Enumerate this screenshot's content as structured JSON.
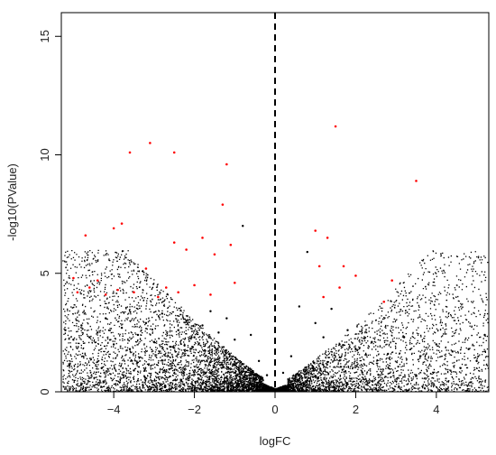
{
  "chart_data": {
    "type": "scatter",
    "title": "",
    "xlabel": "logFC",
    "ylabel": "-log10(PValue)",
    "xlim": [
      -5.3,
      5.3
    ],
    "ylim": [
      0,
      16
    ],
    "x_ticks": [
      -4,
      -2,
      0,
      2,
      4
    ],
    "y_ticks": [
      0,
      5,
      10,
      15
    ],
    "grid": false,
    "reference_line": {
      "x": 0,
      "style": "dashed",
      "color": "#000000"
    },
    "series": [
      {
        "color": "#000000",
        "points": [
          [
            -5.2,
            2.6
          ],
          [
            -5.0,
            2.2
          ],
          [
            -4.8,
            2.8
          ],
          [
            -4.6,
            2.3
          ],
          [
            -4.4,
            2.5
          ],
          [
            -4.2,
            3.1
          ],
          [
            -4.0,
            2.0
          ],
          [
            -3.8,
            2.7
          ],
          [
            -3.6,
            1.8
          ],
          [
            -3.4,
            2.4
          ],
          [
            -3.2,
            2.9
          ],
          [
            -3.0,
            2.1
          ],
          [
            -2.8,
            3.3
          ],
          [
            -2.6,
            1.9
          ],
          [
            -2.4,
            2.6
          ],
          [
            -2.2,
            3.0
          ],
          [
            -2.0,
            2.3
          ],
          [
            -1.8,
            2.8
          ],
          [
            -1.6,
            3.4
          ],
          [
            -1.4,
            2.5
          ],
          [
            -1.2,
            3.1
          ],
          [
            -1.0,
            2.2
          ],
          [
            -0.8,
            7.0
          ],
          [
            -0.6,
            2.4
          ],
          [
            -0.4,
            1.3
          ],
          [
            -0.2,
            0.7
          ],
          [
            0.2,
            0.8
          ],
          [
            0.4,
            1.5
          ],
          [
            0.6,
            3.6
          ],
          [
            0.8,
            5.9
          ],
          [
            1.0,
            2.9
          ],
          [
            1.2,
            2.3
          ],
          [
            1.4,
            3.5
          ],
          [
            1.6,
            2.0
          ],
          [
            1.8,
            2.6
          ],
          [
            2.0,
            1.8
          ],
          [
            2.4,
            2.1
          ],
          [
            2.8,
            1.6
          ],
          [
            3.2,
            2.3
          ],
          [
            3.6,
            1.5
          ],
          [
            4.0,
            2.0
          ],
          [
            4.4,
            1.7
          ],
          [
            4.8,
            1.8
          ],
          [
            5.2,
            2.4
          ],
          [
            -5.1,
            1.1
          ],
          [
            -4.3,
            1.0
          ],
          [
            -3.5,
            0.9
          ],
          [
            3.5,
            0.7
          ],
          [
            4.6,
            1.0
          ],
          [
            5.0,
            1.3
          ]
        ]
      },
      {
        "color": "#ff0000",
        "points": [
          [
            -5.0,
            4.8
          ],
          [
            -4.9,
            4.2
          ],
          [
            -4.7,
            6.6
          ],
          [
            -4.6,
            4.4
          ],
          [
            -4.4,
            4.7
          ],
          [
            -4.2,
            4.1
          ],
          [
            -4.0,
            6.9
          ],
          [
            -3.9,
            4.3
          ],
          [
            -3.8,
            7.1
          ],
          [
            -3.6,
            10.1
          ],
          [
            -3.5,
            4.2
          ],
          [
            -3.2,
            5.2
          ],
          [
            -3.1,
            10.5
          ],
          [
            -2.9,
            4.0
          ],
          [
            -2.7,
            4.4
          ],
          [
            -2.5,
            10.1
          ],
          [
            -2.5,
            6.3
          ],
          [
            -2.4,
            4.2
          ],
          [
            -2.2,
            6.0
          ],
          [
            -2.0,
            4.5
          ],
          [
            -1.8,
            6.5
          ],
          [
            -1.6,
            4.1
          ],
          [
            -1.5,
            5.8
          ],
          [
            -1.3,
            7.9
          ],
          [
            -1.2,
            9.6
          ],
          [
            -1.1,
            6.2
          ],
          [
            -1.0,
            4.6
          ],
          [
            1.0,
            6.8
          ],
          [
            1.1,
            5.3
          ],
          [
            1.2,
            4.0
          ],
          [
            1.3,
            6.5
          ],
          [
            1.5,
            11.2
          ],
          [
            1.6,
            4.4
          ],
          [
            1.7,
            5.3
          ],
          [
            2.0,
            4.9
          ],
          [
            2.7,
            3.8
          ],
          [
            2.9,
            4.7
          ],
          [
            3.5,
            8.9
          ]
        ]
      }
    ]
  }
}
